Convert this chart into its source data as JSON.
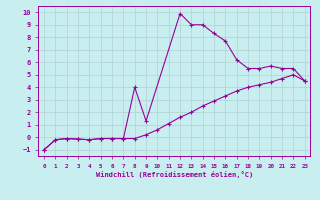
{
  "xlabel": "Windchill (Refroidissement éolien,°C)",
  "bg_color": "#c8eef0",
  "line_color": "#990099",
  "xlim": [
    -0.5,
    23.5
  ],
  "ylim": [
    -1.5,
    10.5
  ],
  "xticks": [
    0,
    1,
    2,
    3,
    4,
    5,
    6,
    7,
    8,
    9,
    10,
    11,
    12,
    13,
    14,
    15,
    16,
    17,
    18,
    19,
    20,
    21,
    22,
    23
  ],
  "yticks": [
    -1,
    0,
    1,
    2,
    3,
    4,
    5,
    6,
    7,
    8,
    9,
    10
  ],
  "line1_x": [
    0,
    1,
    2,
    3,
    4,
    5,
    6,
    7,
    8,
    9,
    12,
    13,
    14,
    15,
    16,
    17,
    18,
    19,
    20,
    21,
    22,
    23
  ],
  "line1_y": [
    -1.0,
    -0.2,
    -0.1,
    -0.15,
    -0.2,
    -0.1,
    -0.1,
    -0.1,
    4.0,
    1.3,
    9.9,
    9.0,
    9.0,
    8.3,
    7.7,
    6.2,
    5.5,
    5.5,
    5.7,
    5.5,
    5.5,
    4.5
  ],
  "line2_x": [
    0,
    1,
    2,
    3,
    4,
    5,
    6,
    7,
    8,
    9,
    10,
    11,
    12,
    13,
    14,
    15,
    16,
    17,
    18,
    19,
    20,
    21,
    22,
    23
  ],
  "line2_y": [
    -1.0,
    -0.2,
    -0.1,
    -0.15,
    -0.2,
    -0.1,
    -0.1,
    -0.1,
    -0.1,
    0.2,
    0.6,
    1.1,
    1.6,
    2.0,
    2.5,
    2.9,
    3.3,
    3.7,
    4.0,
    4.2,
    4.4,
    4.7,
    5.0,
    4.5
  ],
  "grid_color": "#b0d0d4",
  "font_color": "#990099"
}
